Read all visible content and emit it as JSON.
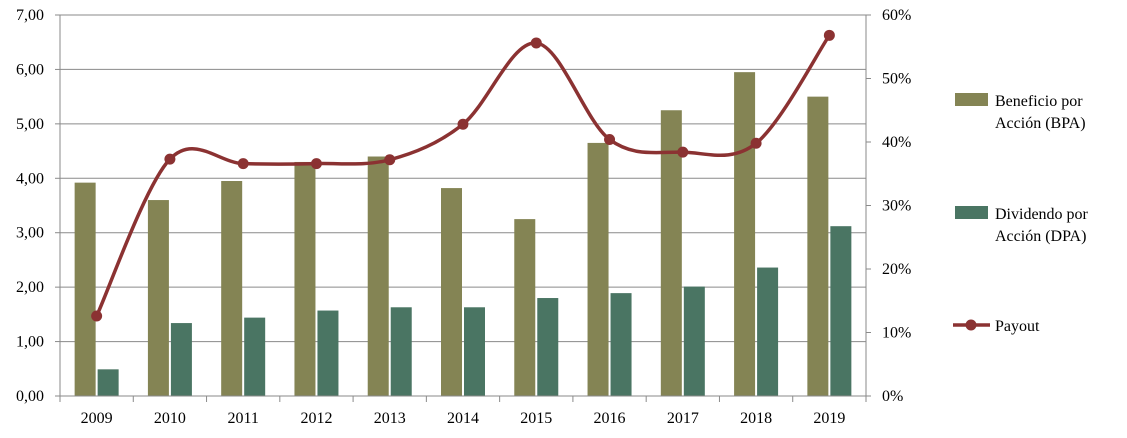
{
  "chart_data": {
    "type": "bar",
    "categories": [
      "2009",
      "2010",
      "2011",
      "2012",
      "2013",
      "2014",
      "2015",
      "2016",
      "2017",
      "2018",
      "2019"
    ],
    "series": [
      {
        "name": "Beneficio por Acción (BPA)",
        "axis": "left",
        "kind": "bar",
        "color": "#848454",
        "values": [
          3.92,
          3.6,
          3.95,
          4.3,
          4.4,
          3.82,
          3.25,
          4.65,
          5.25,
          5.95,
          5.5
        ]
      },
      {
        "name": "Dividendo por Acción (DPA)",
        "axis": "left",
        "kind": "bar",
        "color": "#4a7563",
        "values": [
          0.49,
          1.34,
          1.44,
          1.57,
          1.63,
          1.63,
          1.8,
          1.89,
          2.01,
          2.36,
          3.12
        ]
      },
      {
        "name": "Payout",
        "axis": "right",
        "kind": "line",
        "color": "#8b3232",
        "values": [
          0.126,
          0.373,
          0.366,
          0.366,
          0.372,
          0.428,
          0.556,
          0.404,
          0.384,
          0.398,
          0.568
        ]
      }
    ],
    "legend_lines": [
      [
        "Beneficio por",
        "Acción (BPA)"
      ],
      [
        "Dividendo por",
        "Acción (DPA)"
      ],
      [
        "Payout"
      ]
    ],
    "y_left": {
      "min": 0,
      "max": 7,
      "step": 1,
      "tick_labels": [
        "0,00",
        "1,00",
        "2,00",
        "3,00",
        "4,00",
        "5,00",
        "6,00",
        "7,00"
      ]
    },
    "y_right": {
      "min": 0,
      "max": 0.6,
      "step": 0.1,
      "tick_labels": [
        "0%",
        "10%",
        "20%",
        "30%",
        "40%",
        "50%",
        "60%"
      ]
    },
    "grid": true,
    "legend_position": "right",
    "title": "",
    "xlabel": "",
    "ylabel": ""
  }
}
